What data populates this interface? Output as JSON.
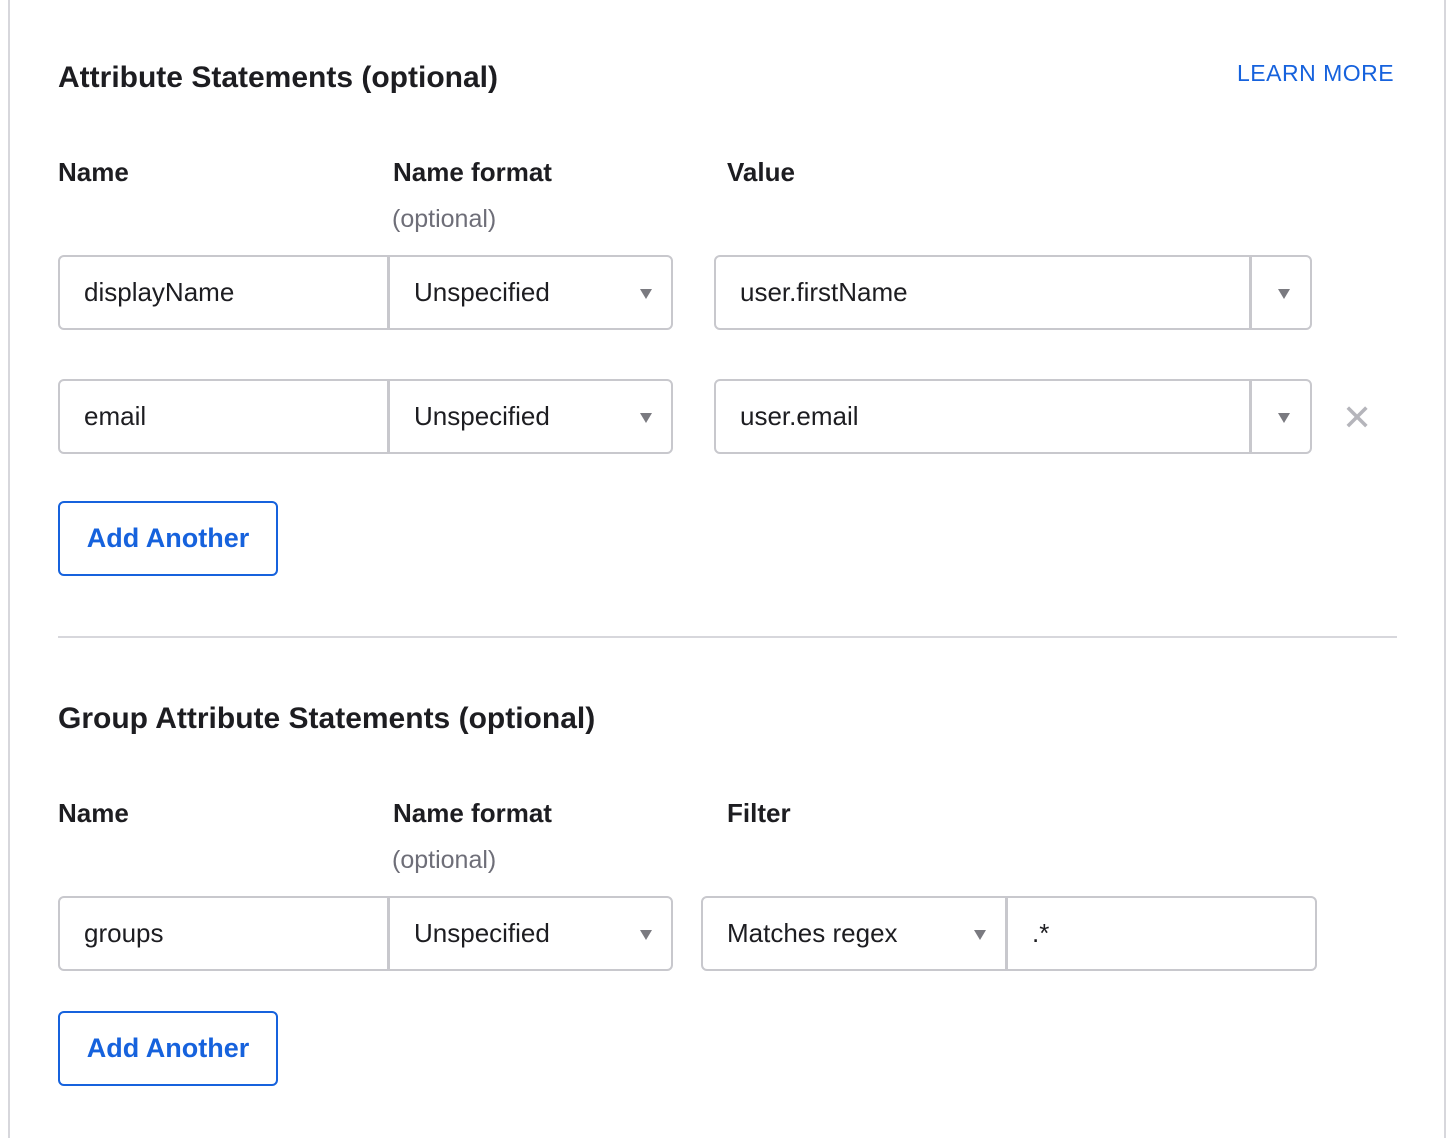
{
  "attribute_statements": {
    "title": "Attribute Statements (optional)",
    "learn_more": "LEARN MORE",
    "columns": {
      "name": "Name",
      "name_format": "Name format",
      "name_format_hint": "(optional)",
      "value": "Value"
    },
    "rows": [
      {
        "name": "displayName",
        "name_format": "Unspecified",
        "value": "user.firstName"
      },
      {
        "name": "email",
        "name_format": "Unspecified",
        "value": "user.email"
      }
    ],
    "add_button": "Add Another"
  },
  "group_attribute_statements": {
    "title": "Group Attribute Statements (optional)",
    "columns": {
      "name": "Name",
      "name_format": "Name format",
      "name_format_hint": "(optional)",
      "filter": "Filter"
    },
    "rows": [
      {
        "name": "groups",
        "name_format": "Unspecified",
        "filter_type": "Matches regex",
        "filter_value": ".*"
      }
    ],
    "add_button": "Add Another"
  },
  "colors": {
    "accent": "#1662dd",
    "border": "#c8c8cd",
    "muted": "#6e6e78"
  },
  "icons": {
    "dropdown": "caret-down-icon",
    "remove": "close-icon"
  }
}
